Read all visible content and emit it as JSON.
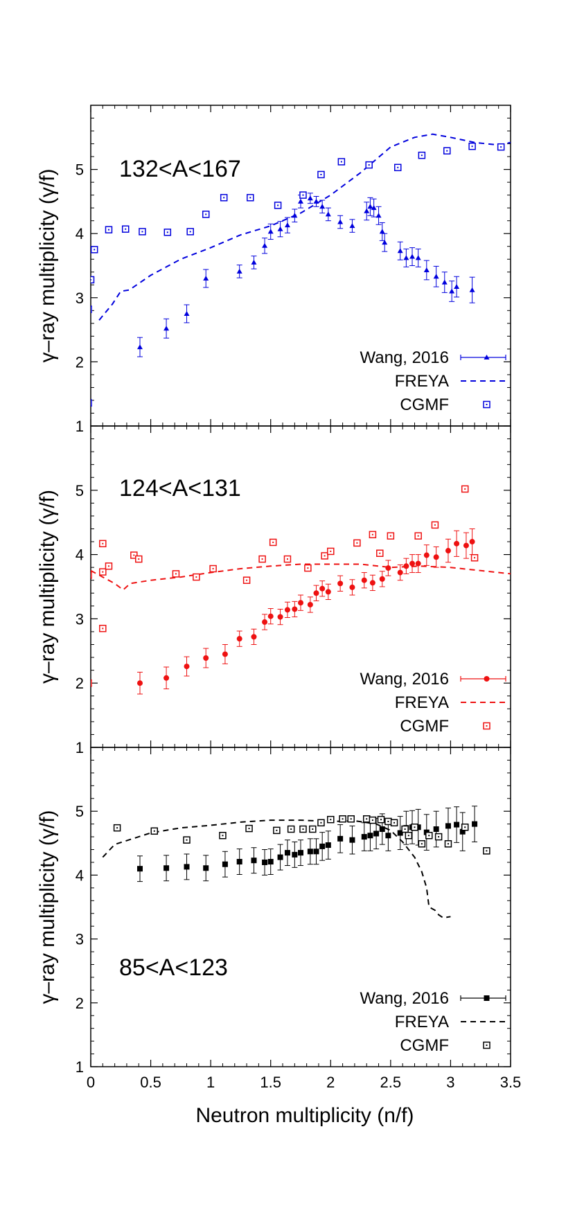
{
  "chart_data": {
    "type": "scatter",
    "xlabel": "Neutron multiplicity (n/f)",
    "xlim": [
      0,
      3.5
    ],
    "x_ticks": [
      "0",
      "0.5",
      "1",
      "1.5",
      "2",
      "2.5",
      "3",
      "3.5"
    ],
    "panels": [
      {
        "label": "132<A<167",
        "ylabel": "γ–ray multiplicity (γ/f)",
        "ylim": [
          1,
          6
        ],
        "y_ticks": [
          "1",
          "2",
          "3",
          "4",
          "5"
        ],
        "color": "#0000dd",
        "legend": [
          "Wang, 2016",
          "FREYA",
          "CGMF"
        ],
        "wang": [
          [
            0.41,
            2.23,
            0.15
          ],
          [
            0.63,
            2.52,
            0.15
          ],
          [
            0.8,
            2.75,
            0.14
          ],
          [
            0.96,
            3.3,
            0.14
          ],
          [
            1.24,
            3.41,
            0.1
          ],
          [
            1.36,
            3.55,
            0.1
          ],
          [
            1.45,
            3.81,
            0.12
          ],
          [
            1.5,
            4.03,
            0.12
          ],
          [
            1.58,
            4.07,
            0.12
          ],
          [
            1.64,
            4.13,
            0.12
          ],
          [
            1.7,
            4.28,
            0.1
          ],
          [
            1.75,
            4.5,
            0.1
          ],
          [
            1.83,
            4.55,
            0.08
          ],
          [
            1.88,
            4.5,
            0.08
          ],
          [
            1.93,
            4.42,
            0.1
          ],
          [
            1.98,
            4.3,
            0.1
          ],
          [
            2.08,
            4.18,
            0.1
          ],
          [
            2.18,
            4.12,
            0.1
          ],
          [
            2.3,
            4.35,
            0.14
          ],
          [
            2.33,
            4.42,
            0.14
          ],
          [
            2.36,
            4.4,
            0.14
          ],
          [
            2.4,
            4.28,
            0.14
          ],
          [
            2.43,
            4.03,
            0.14
          ],
          [
            2.45,
            3.86,
            0.14
          ],
          [
            2.58,
            3.73,
            0.14
          ],
          [
            2.63,
            3.62,
            0.14
          ],
          [
            2.68,
            3.64,
            0.14
          ],
          [
            2.73,
            3.62,
            0.14
          ],
          [
            2.8,
            3.43,
            0.15
          ],
          [
            2.88,
            3.33,
            0.16
          ],
          [
            2.95,
            3.24,
            0.16
          ],
          [
            3.01,
            3.1,
            0.16
          ],
          [
            3.05,
            3.17,
            0.16
          ],
          [
            3.18,
            3.12,
            0.2
          ]
        ],
        "freya": [
          [
            0.07,
            2.65
          ],
          [
            0.18,
            2.9
          ],
          [
            0.25,
            3.1
          ],
          [
            0.32,
            3.12
          ],
          [
            0.5,
            3.35
          ],
          [
            0.75,
            3.6
          ],
          [
            1.0,
            3.78
          ],
          [
            1.25,
            3.98
          ],
          [
            1.5,
            4.12
          ],
          [
            1.75,
            4.32
          ],
          [
            2.0,
            4.6
          ],
          [
            2.25,
            4.95
          ],
          [
            2.5,
            5.35
          ],
          [
            2.7,
            5.5
          ],
          [
            2.85,
            5.55
          ],
          [
            3.0,
            5.5
          ],
          [
            3.2,
            5.42
          ],
          [
            3.4,
            5.38
          ],
          [
            3.5,
            5.42
          ]
        ],
        "cgmf": [
          [
            -0.02,
            1.36
          ],
          [
            -0.02,
            2.82
          ],
          [
            0.0,
            3.28
          ],
          [
            0.03,
            3.75
          ],
          [
            0.15,
            4.06
          ],
          [
            0.29,
            4.07
          ],
          [
            0.43,
            4.03
          ],
          [
            0.64,
            4.02
          ],
          [
            0.83,
            4.03
          ],
          [
            0.96,
            4.3
          ],
          [
            1.11,
            4.56
          ],
          [
            1.33,
            4.56
          ],
          [
            1.56,
            4.44
          ],
          [
            1.77,
            4.6
          ],
          [
            1.92,
            4.92
          ],
          [
            2.09,
            5.12
          ],
          [
            2.32,
            5.07
          ],
          [
            2.56,
            5.03
          ],
          [
            2.76,
            5.22
          ],
          [
            2.97,
            5.29
          ],
          [
            3.18,
            5.36
          ],
          [
            3.42,
            5.35
          ]
        ]
      },
      {
        "label": "124<A<131",
        "ylabel": "γ–ray multiplicity (γ/f)",
        "ylim": [
          1,
          6
        ],
        "y_ticks": [
          "1",
          "2",
          "3",
          "4",
          "5"
        ],
        "color": "#ee1111",
        "legend": [
          "Wang, 2016",
          "FREYA",
          "CGMF"
        ],
        "wang": [
          [
            0.41,
            2.0,
            0.17
          ],
          [
            0.63,
            2.08,
            0.17
          ],
          [
            0.8,
            2.26,
            0.15
          ],
          [
            0.96,
            2.39,
            0.15
          ],
          [
            1.12,
            2.45,
            0.15
          ],
          [
            1.24,
            2.69,
            0.12
          ],
          [
            1.36,
            2.72,
            0.12
          ],
          [
            1.45,
            2.95,
            0.12
          ],
          [
            1.5,
            3.04,
            0.12
          ],
          [
            1.58,
            3.03,
            0.12
          ],
          [
            1.64,
            3.14,
            0.12
          ],
          [
            1.7,
            3.15,
            0.12
          ],
          [
            1.75,
            3.25,
            0.12
          ],
          [
            1.83,
            3.22,
            0.12
          ],
          [
            1.88,
            3.4,
            0.12
          ],
          [
            1.93,
            3.47,
            0.12
          ],
          [
            1.98,
            3.42,
            0.12
          ],
          [
            2.08,
            3.55,
            0.12
          ],
          [
            2.18,
            3.49,
            0.12
          ],
          [
            2.28,
            3.6,
            0.12
          ],
          [
            2.35,
            3.56,
            0.12
          ],
          [
            2.43,
            3.62,
            0.12
          ],
          [
            2.48,
            3.79,
            0.12
          ],
          [
            2.58,
            3.72,
            0.12
          ],
          [
            2.63,
            3.82,
            0.12
          ],
          [
            2.68,
            3.86,
            0.14
          ],
          [
            2.73,
            3.86,
            0.14
          ],
          [
            2.8,
            3.99,
            0.16
          ],
          [
            2.88,
            3.96,
            0.16
          ],
          [
            2.98,
            4.06,
            0.18
          ],
          [
            3.05,
            4.17,
            0.2
          ],
          [
            3.13,
            4.14,
            0.2
          ],
          [
            3.18,
            4.2,
            0.2
          ]
        ],
        "freya": [
          [
            0.0,
            3.75
          ],
          [
            0.1,
            3.65
          ],
          [
            0.2,
            3.55
          ],
          [
            0.27,
            3.45
          ],
          [
            0.33,
            3.55
          ],
          [
            0.5,
            3.6
          ],
          [
            0.75,
            3.65
          ],
          [
            1.0,
            3.72
          ],
          [
            1.25,
            3.78
          ],
          [
            1.5,
            3.82
          ],
          [
            1.75,
            3.85
          ],
          [
            2.0,
            3.85
          ],
          [
            2.25,
            3.85
          ],
          [
            2.5,
            3.8
          ],
          [
            2.75,
            3.82
          ],
          [
            3.0,
            3.8
          ],
          [
            3.25,
            3.75
          ],
          [
            3.5,
            3.7
          ]
        ],
        "cgmf": [
          [
            -0.02,
            2.0
          ],
          [
            -0.02,
            3.68
          ],
          [
            0.1,
            2.85
          ],
          [
            0.1,
            3.73
          ],
          [
            0.1,
            4.17
          ],
          [
            0.15,
            3.82
          ],
          [
            0.36,
            3.99
          ],
          [
            0.4,
            3.93
          ],
          [
            0.71,
            3.7
          ],
          [
            0.88,
            3.65
          ],
          [
            1.02,
            3.78
          ],
          [
            1.3,
            3.6
          ],
          [
            1.43,
            3.93
          ],
          [
            1.52,
            4.19
          ],
          [
            1.64,
            3.93
          ],
          [
            1.81,
            3.79
          ],
          [
            1.95,
            3.98
          ],
          [
            2.0,
            4.05
          ],
          [
            2.22,
            4.18
          ],
          [
            2.35,
            4.31
          ],
          [
            2.41,
            4.02
          ],
          [
            2.5,
            4.29
          ],
          [
            2.73,
            4.29
          ],
          [
            2.87,
            4.46
          ],
          [
            3.12,
            5.02
          ],
          [
            3.2,
            3.95
          ]
        ]
      },
      {
        "label": "85<A<123",
        "ylabel": "γ–ray multiplicity (γ/f)",
        "ylim": [
          1,
          6
        ],
        "y_ticks": [
          "1",
          "2",
          "3",
          "4",
          "5"
        ],
        "color": "#000000",
        "legend": [
          "Wang, 2016",
          "FREYA",
          "CGMF"
        ],
        "wang": [
          [
            0.41,
            4.1,
            0.2
          ],
          [
            0.63,
            4.11,
            0.2
          ],
          [
            0.8,
            4.13,
            0.2
          ],
          [
            0.96,
            4.11,
            0.2
          ],
          [
            1.12,
            4.17,
            0.2
          ],
          [
            1.24,
            4.21,
            0.2
          ],
          [
            1.36,
            4.23,
            0.2
          ],
          [
            1.45,
            4.2,
            0.2
          ],
          [
            1.5,
            4.21,
            0.2
          ],
          [
            1.58,
            4.28,
            0.2
          ],
          [
            1.64,
            4.35,
            0.2
          ],
          [
            1.7,
            4.32,
            0.2
          ],
          [
            1.75,
            4.35,
            0.2
          ],
          [
            1.83,
            4.37,
            0.2
          ],
          [
            1.88,
            4.37,
            0.2
          ],
          [
            1.93,
            4.45,
            0.22
          ],
          [
            1.98,
            4.47,
            0.22
          ],
          [
            2.08,
            4.57,
            0.22
          ],
          [
            2.18,
            4.55,
            0.22
          ],
          [
            2.28,
            4.6,
            0.22
          ],
          [
            2.33,
            4.62,
            0.24
          ],
          [
            2.38,
            4.65,
            0.24
          ],
          [
            2.43,
            4.72,
            0.24
          ],
          [
            2.48,
            4.62,
            0.24
          ],
          [
            2.58,
            4.66,
            0.26
          ],
          [
            2.63,
            4.74,
            0.26
          ],
          [
            2.68,
            4.75,
            0.26
          ],
          [
            2.73,
            4.75,
            0.28
          ],
          [
            2.8,
            4.67,
            0.28
          ],
          [
            2.88,
            4.72,
            0.28
          ],
          [
            2.98,
            4.77,
            0.28
          ],
          [
            3.05,
            4.79,
            0.28
          ],
          [
            3.1,
            4.68,
            0.3
          ],
          [
            3.2,
            4.8,
            0.28
          ]
        ],
        "freya": [
          [
            0.1,
            4.28
          ],
          [
            0.2,
            4.48
          ],
          [
            0.5,
            4.66
          ],
          [
            0.75,
            4.74
          ],
          [
            1.0,
            4.78
          ],
          [
            1.25,
            4.83
          ],
          [
            1.5,
            4.86
          ],
          [
            1.75,
            4.86
          ],
          [
            2.0,
            4.84
          ],
          [
            2.2,
            4.85
          ],
          [
            2.38,
            4.8
          ],
          [
            2.5,
            4.7
          ],
          [
            2.6,
            4.52
          ],
          [
            2.7,
            4.28
          ],
          [
            2.76,
            4.05
          ],
          [
            2.8,
            3.8
          ],
          [
            2.82,
            3.5
          ],
          [
            2.87,
            3.45
          ],
          [
            2.9,
            3.38
          ],
          [
            2.94,
            3.33
          ],
          [
            3.0,
            3.35
          ]
        ],
        "cgmf": [
          [
            0.22,
            4.74
          ],
          [
            0.53,
            4.69
          ],
          [
            0.8,
            4.55
          ],
          [
            1.1,
            4.62
          ],
          [
            1.32,
            4.73
          ],
          [
            1.55,
            4.7
          ],
          [
            1.67,
            4.72
          ],
          [
            1.77,
            4.72
          ],
          [
            1.85,
            4.72
          ],
          [
            1.92,
            4.82
          ],
          [
            2.0,
            4.87
          ],
          [
            2.1,
            4.88
          ],
          [
            2.17,
            4.88
          ],
          [
            2.3,
            4.88
          ],
          [
            2.35,
            4.86
          ],
          [
            2.42,
            4.87
          ],
          [
            2.48,
            4.84
          ],
          [
            2.53,
            4.82
          ],
          [
            2.62,
            4.72
          ],
          [
            2.65,
            4.62
          ],
          [
            2.7,
            4.75
          ],
          [
            2.76,
            4.49
          ],
          [
            2.82,
            4.62
          ],
          [
            2.9,
            4.6
          ],
          [
            2.98,
            4.49
          ],
          [
            3.12,
            4.75
          ],
          [
            3.3,
            4.38
          ]
        ]
      }
    ]
  }
}
